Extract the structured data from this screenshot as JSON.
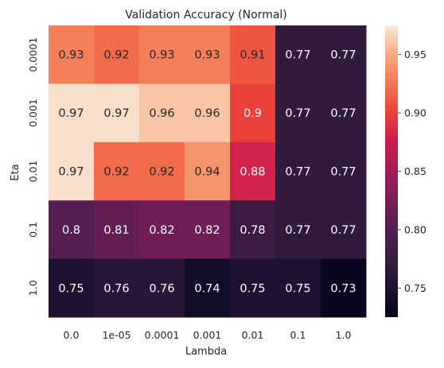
{
  "chart_data": {
    "type": "heatmap",
    "title": "Validation Accuracy (Normal)",
    "xlabel": "Lambda",
    "ylabel": "Eta",
    "x_categories": [
      "0.0",
      "1e-05",
      "0.0001",
      "0.001",
      "0.01",
      "0.1",
      "1.0"
    ],
    "y_categories": [
      "0.0001",
      "0.001",
      "0.01",
      "0.1",
      "1.0"
    ],
    "values": [
      [
        0.93,
        0.92,
        0.93,
        0.93,
        0.91,
        0.77,
        0.77
      ],
      [
        0.97,
        0.97,
        0.96,
        0.96,
        0.9,
        0.77,
        0.77
      ],
      [
        0.97,
        0.92,
        0.92,
        0.94,
        0.88,
        0.77,
        0.77
      ],
      [
        0.8,
        0.81,
        0.82,
        0.82,
        0.78,
        0.77,
        0.77
      ],
      [
        0.75,
        0.76,
        0.76,
        0.74,
        0.75,
        0.75,
        0.73
      ]
    ],
    "cell_labels": [
      [
        "0.93",
        "0.92",
        "0.93",
        "0.93",
        "0.91",
        "0.77",
        "0.77"
      ],
      [
        "0.97",
        "0.97",
        "0.96",
        "0.96",
        "0.9",
        "0.77",
        "0.77"
      ],
      [
        "0.97",
        "0.92",
        "0.92",
        "0.94",
        "0.88",
        "0.77",
        "0.77"
      ],
      [
        "0.8",
        "0.81",
        "0.82",
        "0.82",
        "0.78",
        "0.77",
        "0.77"
      ],
      [
        "0.75",
        "0.76",
        "0.76",
        "0.74",
        "0.75",
        "0.75",
        "0.73"
      ]
    ],
    "colorbar": {
      "range": [
        0.725,
        0.975
      ],
      "ticks": [
        "0.75",
        "0.80",
        "0.85",
        "0.90",
        "0.95"
      ],
      "tick_values": [
        0.75,
        0.8,
        0.85,
        0.9,
        0.95
      ],
      "colormap": "rocket"
    },
    "grid": false
  }
}
